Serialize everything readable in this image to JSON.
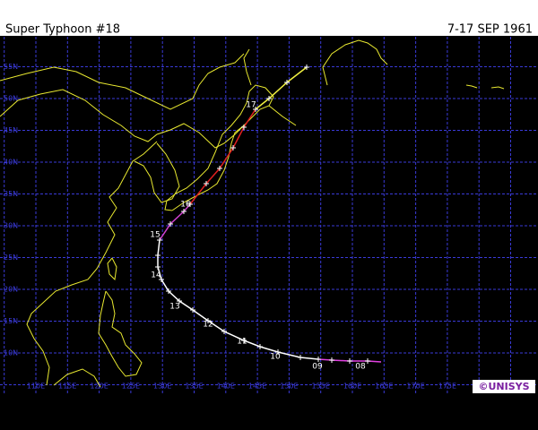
{
  "header": {
    "title": "Super Typhoon  #18",
    "dates": "7-17 SEP 1961"
  },
  "latitude_labels": [
    "10N",
    "15N",
    "20N",
    "25N",
    "30N",
    "35N",
    "40N",
    "45N",
    "50N",
    "55N"
  ],
  "longitude_labels": [
    "110E",
    "115E",
    "120E",
    "125E",
    "130E",
    "135E",
    "140E",
    "145E",
    "150E",
    "155E",
    "160E",
    "165E",
    "170E",
    "175E"
  ],
  "track_labels": [
    "08",
    "09",
    "10",
    "11",
    "12",
    "13",
    "14",
    "15",
    "16",
    "17"
  ],
  "logo": "©UNISYS"
}
